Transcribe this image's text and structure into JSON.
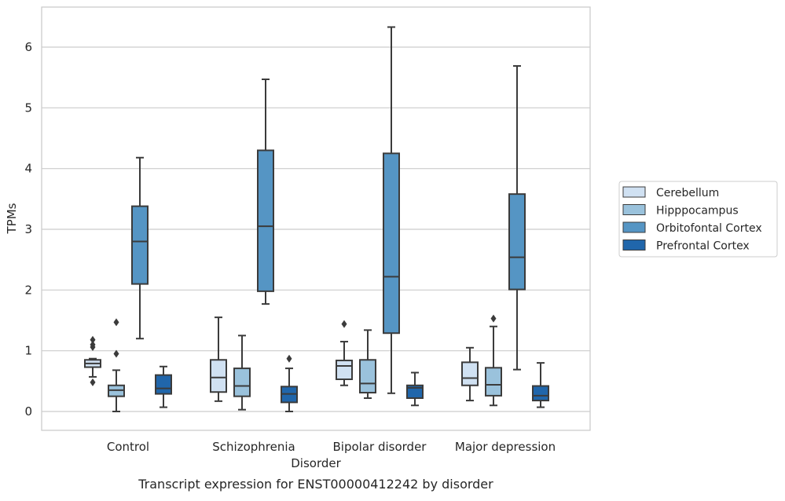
{
  "chart_data": {
    "type": "box",
    "caption": "Transcript expression for ENST00000412242 by disorder",
    "xlabel": "Disorder",
    "ylabel": "TPMs",
    "ylim": [
      -0.3,
      6.6
    ],
    "y_ticks": [
      0,
      1,
      2,
      3,
      4,
      5,
      6
    ],
    "grid": "horizontal",
    "legend_position": "right",
    "categories": [
      "Control",
      "Schizophrenia",
      "Bipolar disorder",
      "Major depression"
    ],
    "series": [
      {
        "name": "Cerebellum",
        "color": "#d0e1f2",
        "boxes": [
          {
            "whisker_low": 0.57,
            "q1": 0.73,
            "median": 0.79,
            "q3": 0.85,
            "whisker_high": 0.87,
            "outliers": [
              1.18,
              1.1,
              1.06,
              0.48
            ]
          },
          {
            "whisker_low": 0.17,
            "q1": 0.32,
            "median": 0.56,
            "q3": 0.85,
            "whisker_high": 1.55,
            "outliers": []
          },
          {
            "whisker_low": 0.43,
            "q1": 0.53,
            "median": 0.75,
            "q3": 0.84,
            "whisker_high": 1.15,
            "outliers": [
              1.44
            ]
          },
          {
            "whisker_low": 0.18,
            "q1": 0.43,
            "median": 0.55,
            "q3": 0.81,
            "whisker_high": 1.05,
            "outliers": []
          }
        ]
      },
      {
        "name": "Hipppocampus",
        "color": "#9ac2dc",
        "boxes": [
          {
            "whisker_low": 0.0,
            "q1": 0.25,
            "median": 0.35,
            "q3": 0.43,
            "whisker_high": 0.68,
            "outliers": [
              1.47,
              0.95
            ]
          },
          {
            "whisker_low": 0.03,
            "q1": 0.25,
            "median": 0.42,
            "q3": 0.71,
            "whisker_high": 1.25,
            "outliers": []
          },
          {
            "whisker_low": 0.22,
            "q1": 0.31,
            "median": 0.46,
            "q3": 0.85,
            "whisker_high": 1.34,
            "outliers": []
          },
          {
            "whisker_low": 0.1,
            "q1": 0.26,
            "median": 0.44,
            "q3": 0.72,
            "whisker_high": 1.4,
            "outliers": [
              1.53
            ]
          }
        ]
      },
      {
        "name": "Orbitofontal Cortex",
        "color": "#5595c4",
        "boxes": [
          {
            "whisker_low": 1.2,
            "q1": 2.1,
            "median": 2.8,
            "q3": 3.38,
            "whisker_high": 4.18,
            "outliers": []
          },
          {
            "whisker_low": 1.77,
            "q1": 1.98,
            "median": 3.05,
            "q3": 4.3,
            "whisker_high": 5.47,
            "outliers": []
          },
          {
            "whisker_low": 0.3,
            "q1": 1.29,
            "median": 2.22,
            "q3": 4.25,
            "whisker_high": 6.33,
            "outliers": []
          },
          {
            "whisker_low": 0.69,
            "q1": 2.01,
            "median": 2.54,
            "q3": 3.58,
            "whisker_high": 5.69,
            "outliers": []
          }
        ]
      },
      {
        "name": "Prefrontal Cortex",
        "color": "#2066ab",
        "boxes": [
          {
            "whisker_low": 0.07,
            "q1": 0.29,
            "median": 0.38,
            "q3": 0.6,
            "whisker_high": 0.74,
            "outliers": []
          },
          {
            "whisker_low": 0.0,
            "q1": 0.15,
            "median": 0.29,
            "q3": 0.41,
            "whisker_high": 0.71,
            "outliers": [
              0.87
            ]
          },
          {
            "whisker_low": 0.1,
            "q1": 0.22,
            "median": 0.39,
            "q3": 0.43,
            "whisker_high": 0.64,
            "outliers": []
          },
          {
            "whisker_low": 0.07,
            "q1": 0.18,
            "median": 0.26,
            "q3": 0.42,
            "whisker_high": 0.8,
            "outliers": []
          }
        ]
      }
    ]
  }
}
